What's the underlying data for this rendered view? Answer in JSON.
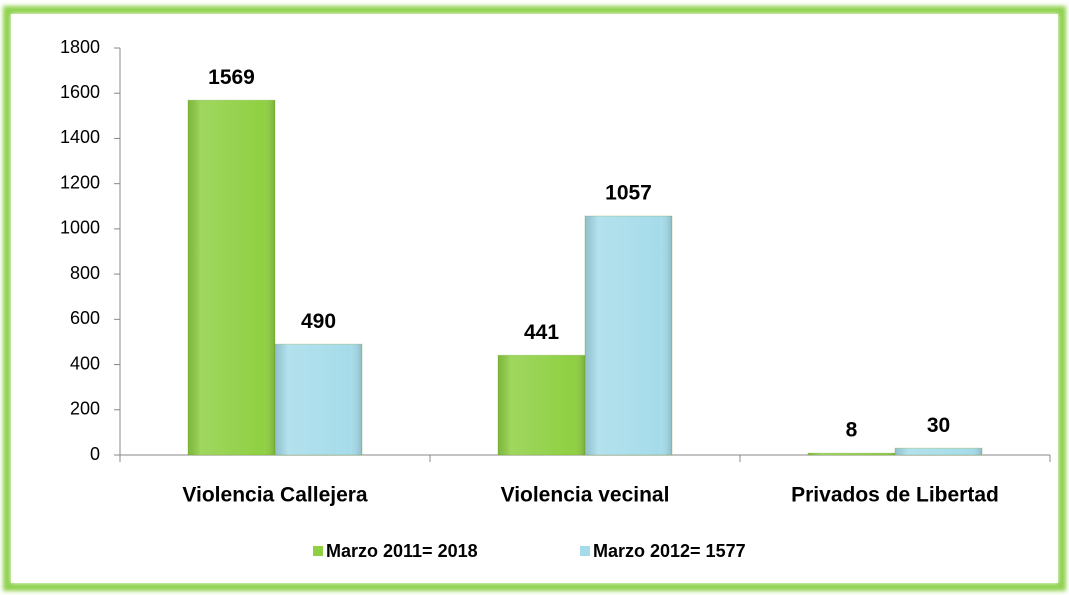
{
  "chart_data": {
    "type": "bar",
    "categories": [
      "Violencia Callejera",
      "Violencia vecinal",
      "Privados de Libertad"
    ],
    "series": [
      {
        "name": "Marzo 2011= 2018",
        "color": "#8fd043",
        "values": [
          1569,
          441,
          8
        ]
      },
      {
        "name": "Marzo 2012= 1577",
        "color": "#a6dcea",
        "values": [
          490,
          1057,
          30
        ]
      }
    ],
    "ylim": [
      0,
      1800
    ],
    "yticks": [
      0,
      200,
      400,
      600,
      800,
      1000,
      1200,
      1400,
      1600,
      1800
    ],
    "legend": "bottom",
    "data_labels": true
  }
}
